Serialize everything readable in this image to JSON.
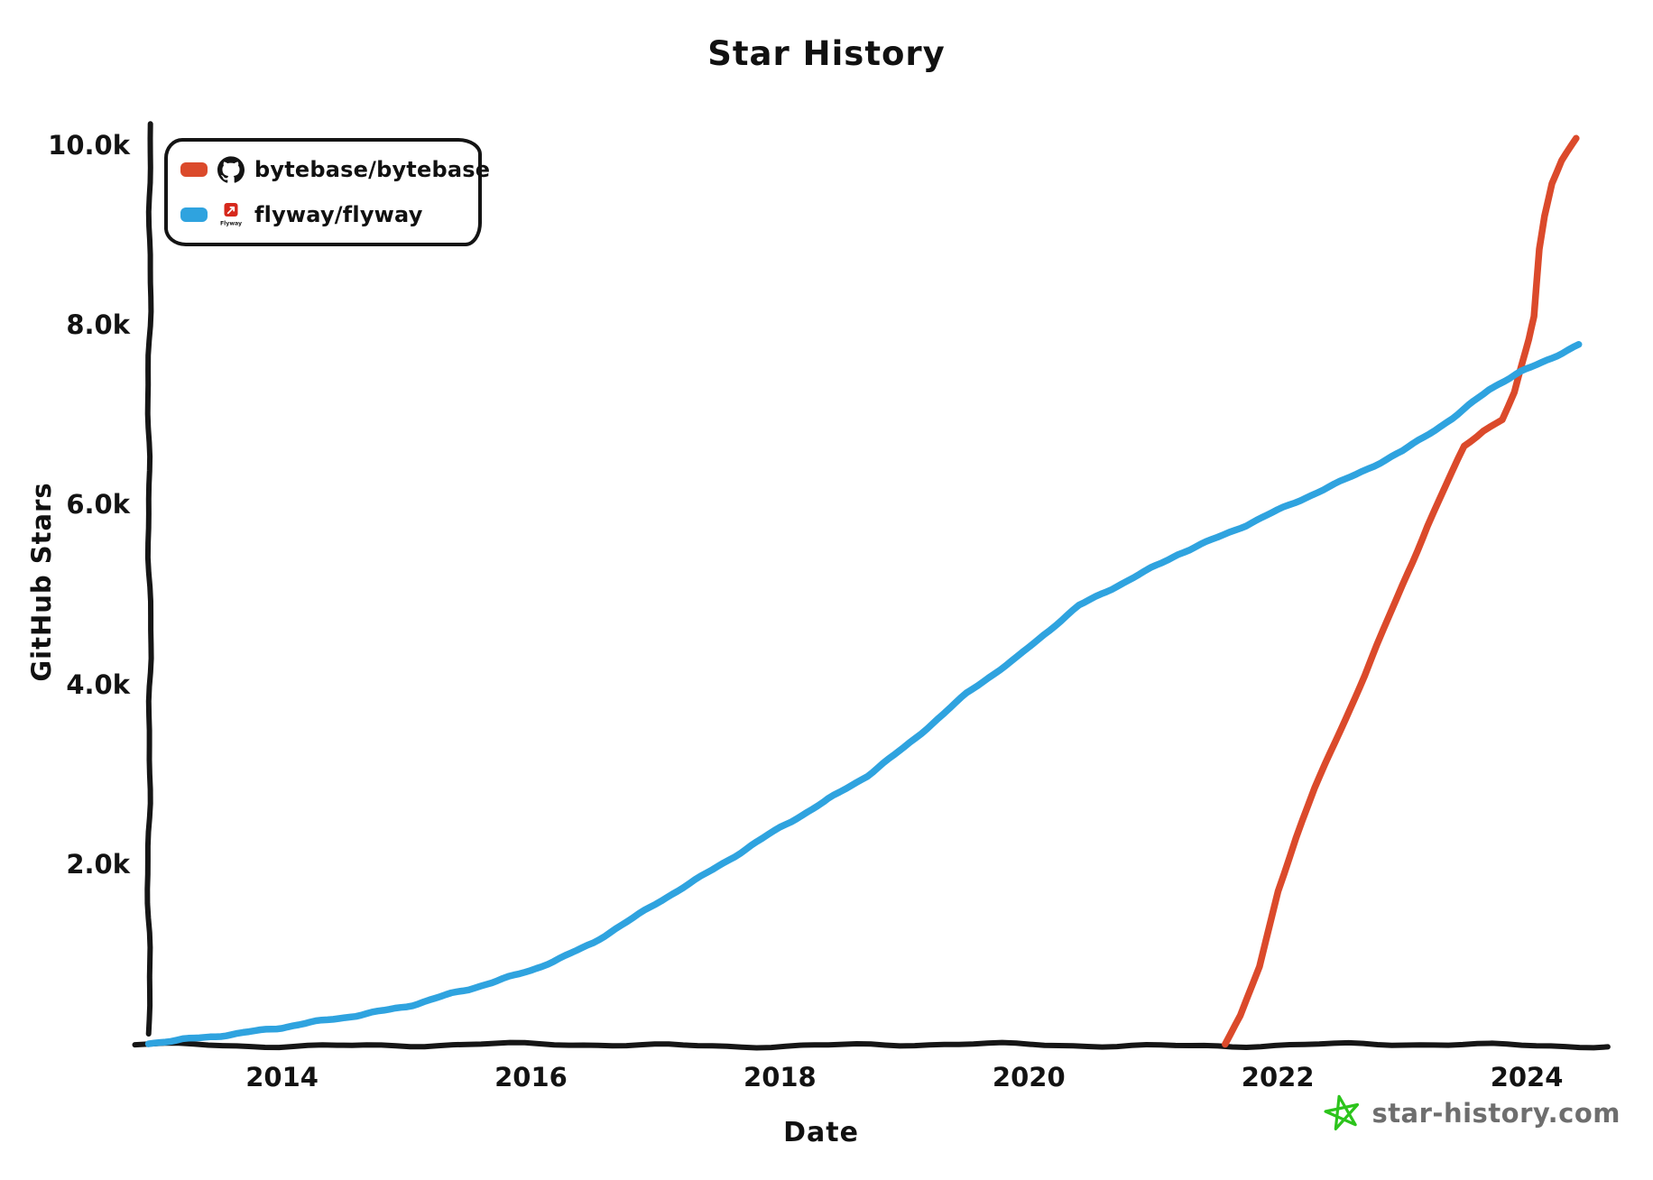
{
  "page": {
    "background": "#ffffff"
  },
  "chart_data": {
    "type": "line",
    "title": "Star History",
    "xlabel": "Date",
    "ylabel": "GitHub Stars",
    "watermark": "star-history.com",
    "watermark_color": "#6e6e6e",
    "logo_star_color": "#2CC41C",
    "axis_color": "#161616",
    "grid": false,
    "legend_position": "top-left",
    "xlim": [
      2012.93,
      2024.71
    ],
    "ylim": [
      0,
      10230
    ],
    "x_ticks": [
      {
        "label": "2014",
        "year": 2014
      },
      {
        "label": "2016",
        "year": 2016
      },
      {
        "label": "2018",
        "year": 2018
      },
      {
        "label": "2020",
        "year": 2020
      },
      {
        "label": "2022",
        "year": 2022
      },
      {
        "label": "2024",
        "year": 2024
      }
    ],
    "y_ticks": [
      {
        "label": "2.0k",
        "value": 2000
      },
      {
        "label": "4.0k",
        "value": 4000
      },
      {
        "label": "6.0k",
        "value": 6000
      },
      {
        "label": "8.0k",
        "value": 8000
      },
      {
        "label": "10.0k",
        "value": 10000
      }
    ],
    "series": [
      {
        "name": "bytebase/bytebase",
        "icon": "github-octocat-icon",
        "color": "#DB4A2B",
        "points": [
          [
            2021.58,
            0
          ],
          [
            2021.7,
            300
          ],
          [
            2021.85,
            850
          ],
          [
            2022.0,
            1700
          ],
          [
            2022.15,
            2300
          ],
          [
            2022.3,
            2850
          ],
          [
            2022.5,
            3500
          ],
          [
            2022.7,
            4100
          ],
          [
            2022.85,
            4600
          ],
          [
            2023.0,
            5100
          ],
          [
            2023.2,
            5750
          ],
          [
            2023.35,
            6200
          ],
          [
            2023.5,
            6650
          ],
          [
            2023.65,
            6830
          ],
          [
            2023.8,
            6950
          ],
          [
            2023.9,
            7250
          ],
          [
            2023.97,
            7600
          ],
          [
            2024.02,
            7850
          ],
          [
            2024.06,
            8100
          ],
          [
            2024.1,
            8850
          ],
          [
            2024.14,
            9200
          ],
          [
            2024.2,
            9560
          ],
          [
            2024.28,
            9820
          ],
          [
            2024.4,
            10080
          ]
        ]
      },
      {
        "name": "flyway/flyway",
        "icon": "flyway-logo-icon",
        "icon_text": "Flyway",
        "color": "#2FA3DF",
        "points": [
          [
            2012.93,
            0
          ],
          [
            2013.2,
            50
          ],
          [
            2013.6,
            110
          ],
          [
            2014.0,
            175
          ],
          [
            2014.5,
            295
          ],
          [
            2015.0,
            420
          ],
          [
            2015.5,
            600
          ],
          [
            2016.0,
            820
          ],
          [
            2016.5,
            1120
          ],
          [
            2017.0,
            1550
          ],
          [
            2017.5,
            1980
          ],
          [
            2018.0,
            2400
          ],
          [
            2018.35,
            2680
          ],
          [
            2018.7,
            2990
          ],
          [
            2019.0,
            3300
          ],
          [
            2019.5,
            3890
          ],
          [
            2019.9,
            4300
          ],
          [
            2020.4,
            4880
          ],
          [
            2020.8,
            5150
          ],
          [
            2021.2,
            5450
          ],
          [
            2021.7,
            5750
          ],
          [
            2022.0,
            5930
          ],
          [
            2022.5,
            6250
          ],
          [
            2023.0,
            6600
          ],
          [
            2023.4,
            6950
          ],
          [
            2023.7,
            7280
          ],
          [
            2023.95,
            7480
          ],
          [
            2024.2,
            7640
          ],
          [
            2024.42,
            7780
          ]
        ]
      }
    ]
  }
}
